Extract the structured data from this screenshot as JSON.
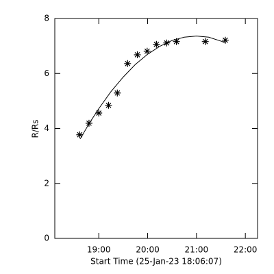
{
  "chart_data": {
    "type": "scatter",
    "x_label": "Start Time (25-Jan-23 18:06:07)",
    "y_label": "R/Rs",
    "x": [
      18.61,
      18.8,
      19.0,
      19.2,
      19.38,
      19.59,
      19.79,
      19.99,
      20.18,
      20.39,
      20.59,
      21.18,
      21.59
    ],
    "values": [
      3.77,
      4.19,
      4.56,
      4.84,
      5.29,
      6.36,
      6.68,
      6.81,
      7.06,
      7.11,
      7.16,
      7.16,
      7.21
    ],
    "color": "#000000",
    "fit": {
      "x": [
        18.62,
        18.8,
        19.0,
        19.25,
        19.5,
        19.75,
        20.0,
        20.25,
        20.5,
        20.75,
        21.0,
        21.25,
        21.6
      ],
      "values": [
        3.62,
        4.17,
        4.72,
        5.34,
        5.87,
        6.33,
        6.7,
        6.99,
        7.2,
        7.32,
        7.36,
        7.32,
        7.12
      ]
    },
    "xlim": [
      18.1,
      22.25
    ],
    "xticks": [
      {
        "value": 19,
        "label": "19:00"
      },
      {
        "value": 20,
        "label": "20:00"
      },
      {
        "value": 21,
        "label": "21:00"
      },
      {
        "value": 22,
        "label": "22:00"
      }
    ],
    "ylim": [
      0,
      8
    ],
    "yticks": [
      0,
      2,
      4,
      6,
      8
    ]
  }
}
